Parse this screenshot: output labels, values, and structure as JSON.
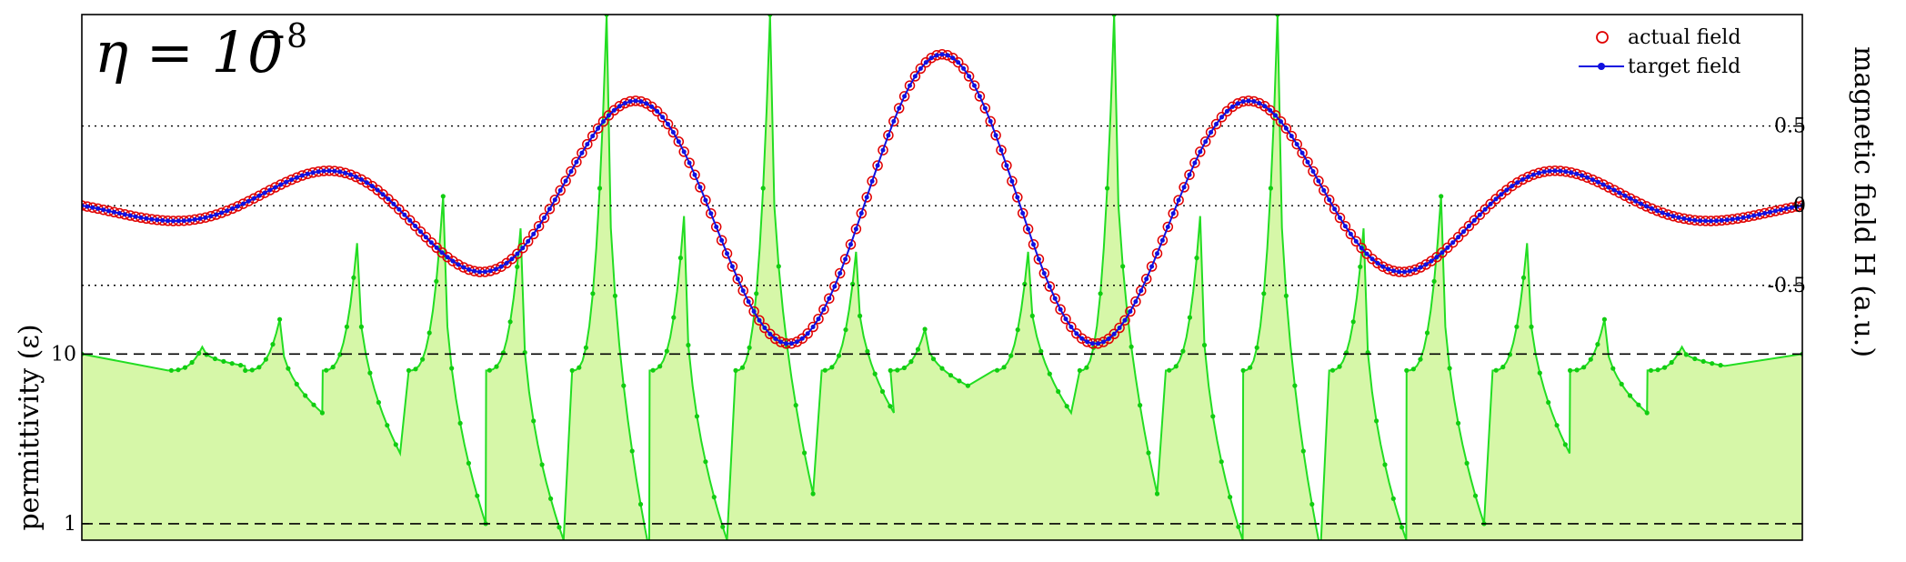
{
  "chart_data": {
    "type": "line",
    "annotation": {
      "base": "η = 10",
      "exponent": "−8"
    },
    "legend": {
      "position": "top-right",
      "entries": [
        {
          "label": "actual field",
          "marker": "open-circle",
          "color": "#e00000"
        },
        {
          "label": "target field",
          "marker": "line-dot",
          "color": "#1010e0"
        }
      ]
    },
    "y_left": {
      "label": "permittivity (ε)",
      "scale": "log",
      "ticks": [
        {
          "value": 1,
          "label": "1"
        },
        {
          "value": 10,
          "label": "10"
        }
      ],
      "range": [
        0.8,
        1000
      ],
      "reference_lines": [
        1,
        10
      ]
    },
    "y_right": {
      "label": "magnetic field H (a.u.)",
      "ticks": [
        {
          "value": 0.5,
          "label": "0.5"
        },
        {
          "value": 0,
          "label": "0"
        },
        {
          "value": -0.5,
          "label": "-0.5"
        }
      ],
      "range": [
        -2.1,
        1.2
      ],
      "reference_lines": [
        0.5,
        0,
        -0.5
      ]
    },
    "x_range": [
      -1,
      1
    ],
    "field": {
      "description": "Gaussian-modulated oscillation, peak amplitude ~0.95 centered at x=0",
      "amplitude": 0.95,
      "gaussian_width": 0.42,
      "wavenumber": 17.3,
      "phase": 0,
      "sample_points": 320
    },
    "permittivity": {
      "background": 10,
      "peaks": [
        {
          "x": -0.86,
          "peak": 11.0,
          "dip": 8.5
        },
        {
          "x": -0.77,
          "peak": 16.0,
          "dip": 4.5
        },
        {
          "x": -0.68,
          "peak": 45.0,
          "dip": 2.6
        },
        {
          "x": -0.58,
          "peak": 85.0,
          "dip": 1.0
        },
        {
          "x": -0.49,
          "peak": 55.0,
          "dip": 0.8
        },
        {
          "x": -0.39,
          "peak": 1000,
          "dip": 0.7
        },
        {
          "x": -0.3,
          "peak": 65.0,
          "dip": 0.8
        },
        {
          "x": -0.2,
          "peak": 1000,
          "dip": 1.5
        },
        {
          "x": -0.1,
          "peak": 40.0,
          "dip": 4.5
        },
        {
          "x": -0.02,
          "peak": 14.0,
          "dip": 6.5
        },
        {
          "x": 0.1,
          "peak": 40.0,
          "dip": 4.5
        },
        {
          "x": 0.2,
          "peak": 1000,
          "dip": 1.5
        },
        {
          "x": 0.3,
          "peak": 65.0,
          "dip": 0.8
        },
        {
          "x": 0.39,
          "peak": 1000,
          "dip": 0.7
        },
        {
          "x": 0.49,
          "peak": 55.0,
          "dip": 0.8
        },
        {
          "x": 0.58,
          "peak": 85.0,
          "dip": 1.0
        },
        {
          "x": 0.68,
          "peak": 45.0,
          "dip": 2.6
        },
        {
          "x": 0.77,
          "peak": 16.0,
          "dip": 4.5
        },
        {
          "x": 0.86,
          "peak": 11.0,
          "dip": 8.5
        }
      ]
    },
    "colors": {
      "actual_field": "#e00000",
      "target_field": "#1010e0",
      "permittivity_line": "#22dd22",
      "permittivity_fill": "#d6f7a8",
      "permittivity_marker": "#11cc11"
    },
    "grid": false
  }
}
